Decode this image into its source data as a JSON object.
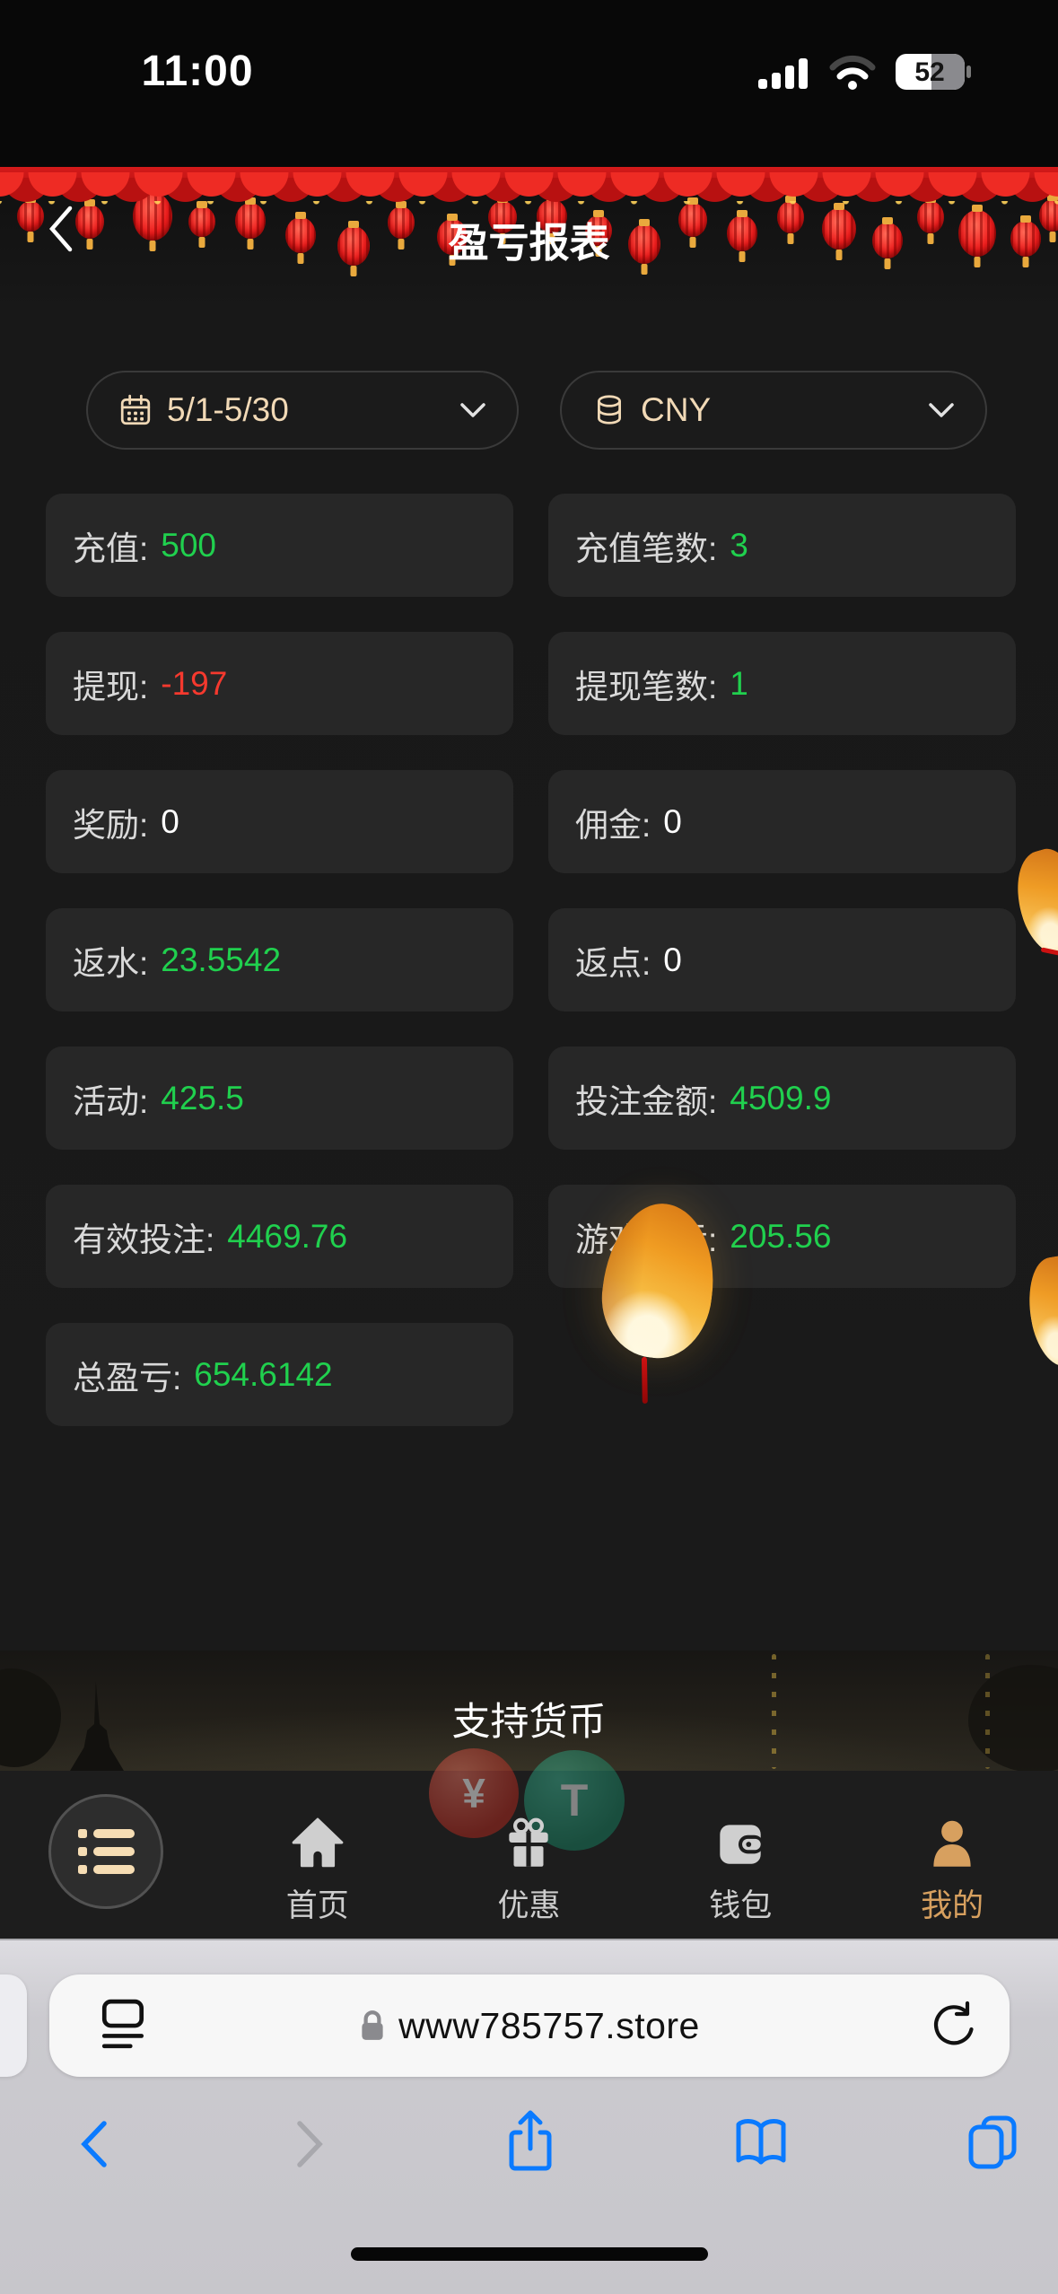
{
  "status_bar": {
    "time": "11:00",
    "battery_percent": "52"
  },
  "header": {
    "title": "盈亏报表"
  },
  "filters": {
    "date_range": {
      "value": "5/1-5/30"
    },
    "currency": {
      "value": "CNY"
    }
  },
  "stats": [
    {
      "label": "充值:",
      "value": "500",
      "color": "positive"
    },
    {
      "label": "充值笔数:",
      "value": "3",
      "color": "positive"
    },
    {
      "label": "提现:",
      "value": "-197",
      "color": "negative"
    },
    {
      "label": "提现笔数:",
      "value": "1",
      "color": "positive"
    },
    {
      "label": "奖励:",
      "value": "0",
      "color": "neutral"
    },
    {
      "label": "佣金:",
      "value": "0",
      "color": "neutral"
    },
    {
      "label": "返水:",
      "value": "23.5542",
      "color": "positive"
    },
    {
      "label": "返点:",
      "value": "0",
      "color": "neutral"
    },
    {
      "label": "活动:",
      "value": "425.5",
      "color": "positive"
    },
    {
      "label": "投注金额:",
      "value": "4509.9",
      "color": "positive"
    },
    {
      "label": "有效投注:",
      "value": "4469.76",
      "color": "positive"
    },
    {
      "label": "游戏盈亏:",
      "value": "205.56",
      "color": "positive"
    },
    {
      "label": "总盈亏:",
      "value": "654.6142",
      "color": "positive"
    }
  ],
  "sections": {
    "supported_currency": "支持货币"
  },
  "bottom_nav": {
    "items": [
      {
        "label": "首页",
        "icon": "home-icon",
        "active": false
      },
      {
        "label": "优惠",
        "icon": "gift-icon",
        "active": false
      },
      {
        "label": "钱包",
        "icon": "wallet-icon",
        "active": false
      },
      {
        "label": "我的",
        "icon": "user-icon",
        "active": true
      }
    ],
    "coin_badges": [
      {
        "symbol": "¥"
      },
      {
        "symbol": "T"
      }
    ]
  },
  "browser": {
    "url": "www785757.store"
  },
  "colors": {
    "positive": "#20d04e",
    "negative": "#f5392e",
    "neutral": "#ffffff",
    "cream": "#f1d9b6",
    "active_tab": "#d7a05f",
    "safari_blue": "#0a7aff"
  }
}
